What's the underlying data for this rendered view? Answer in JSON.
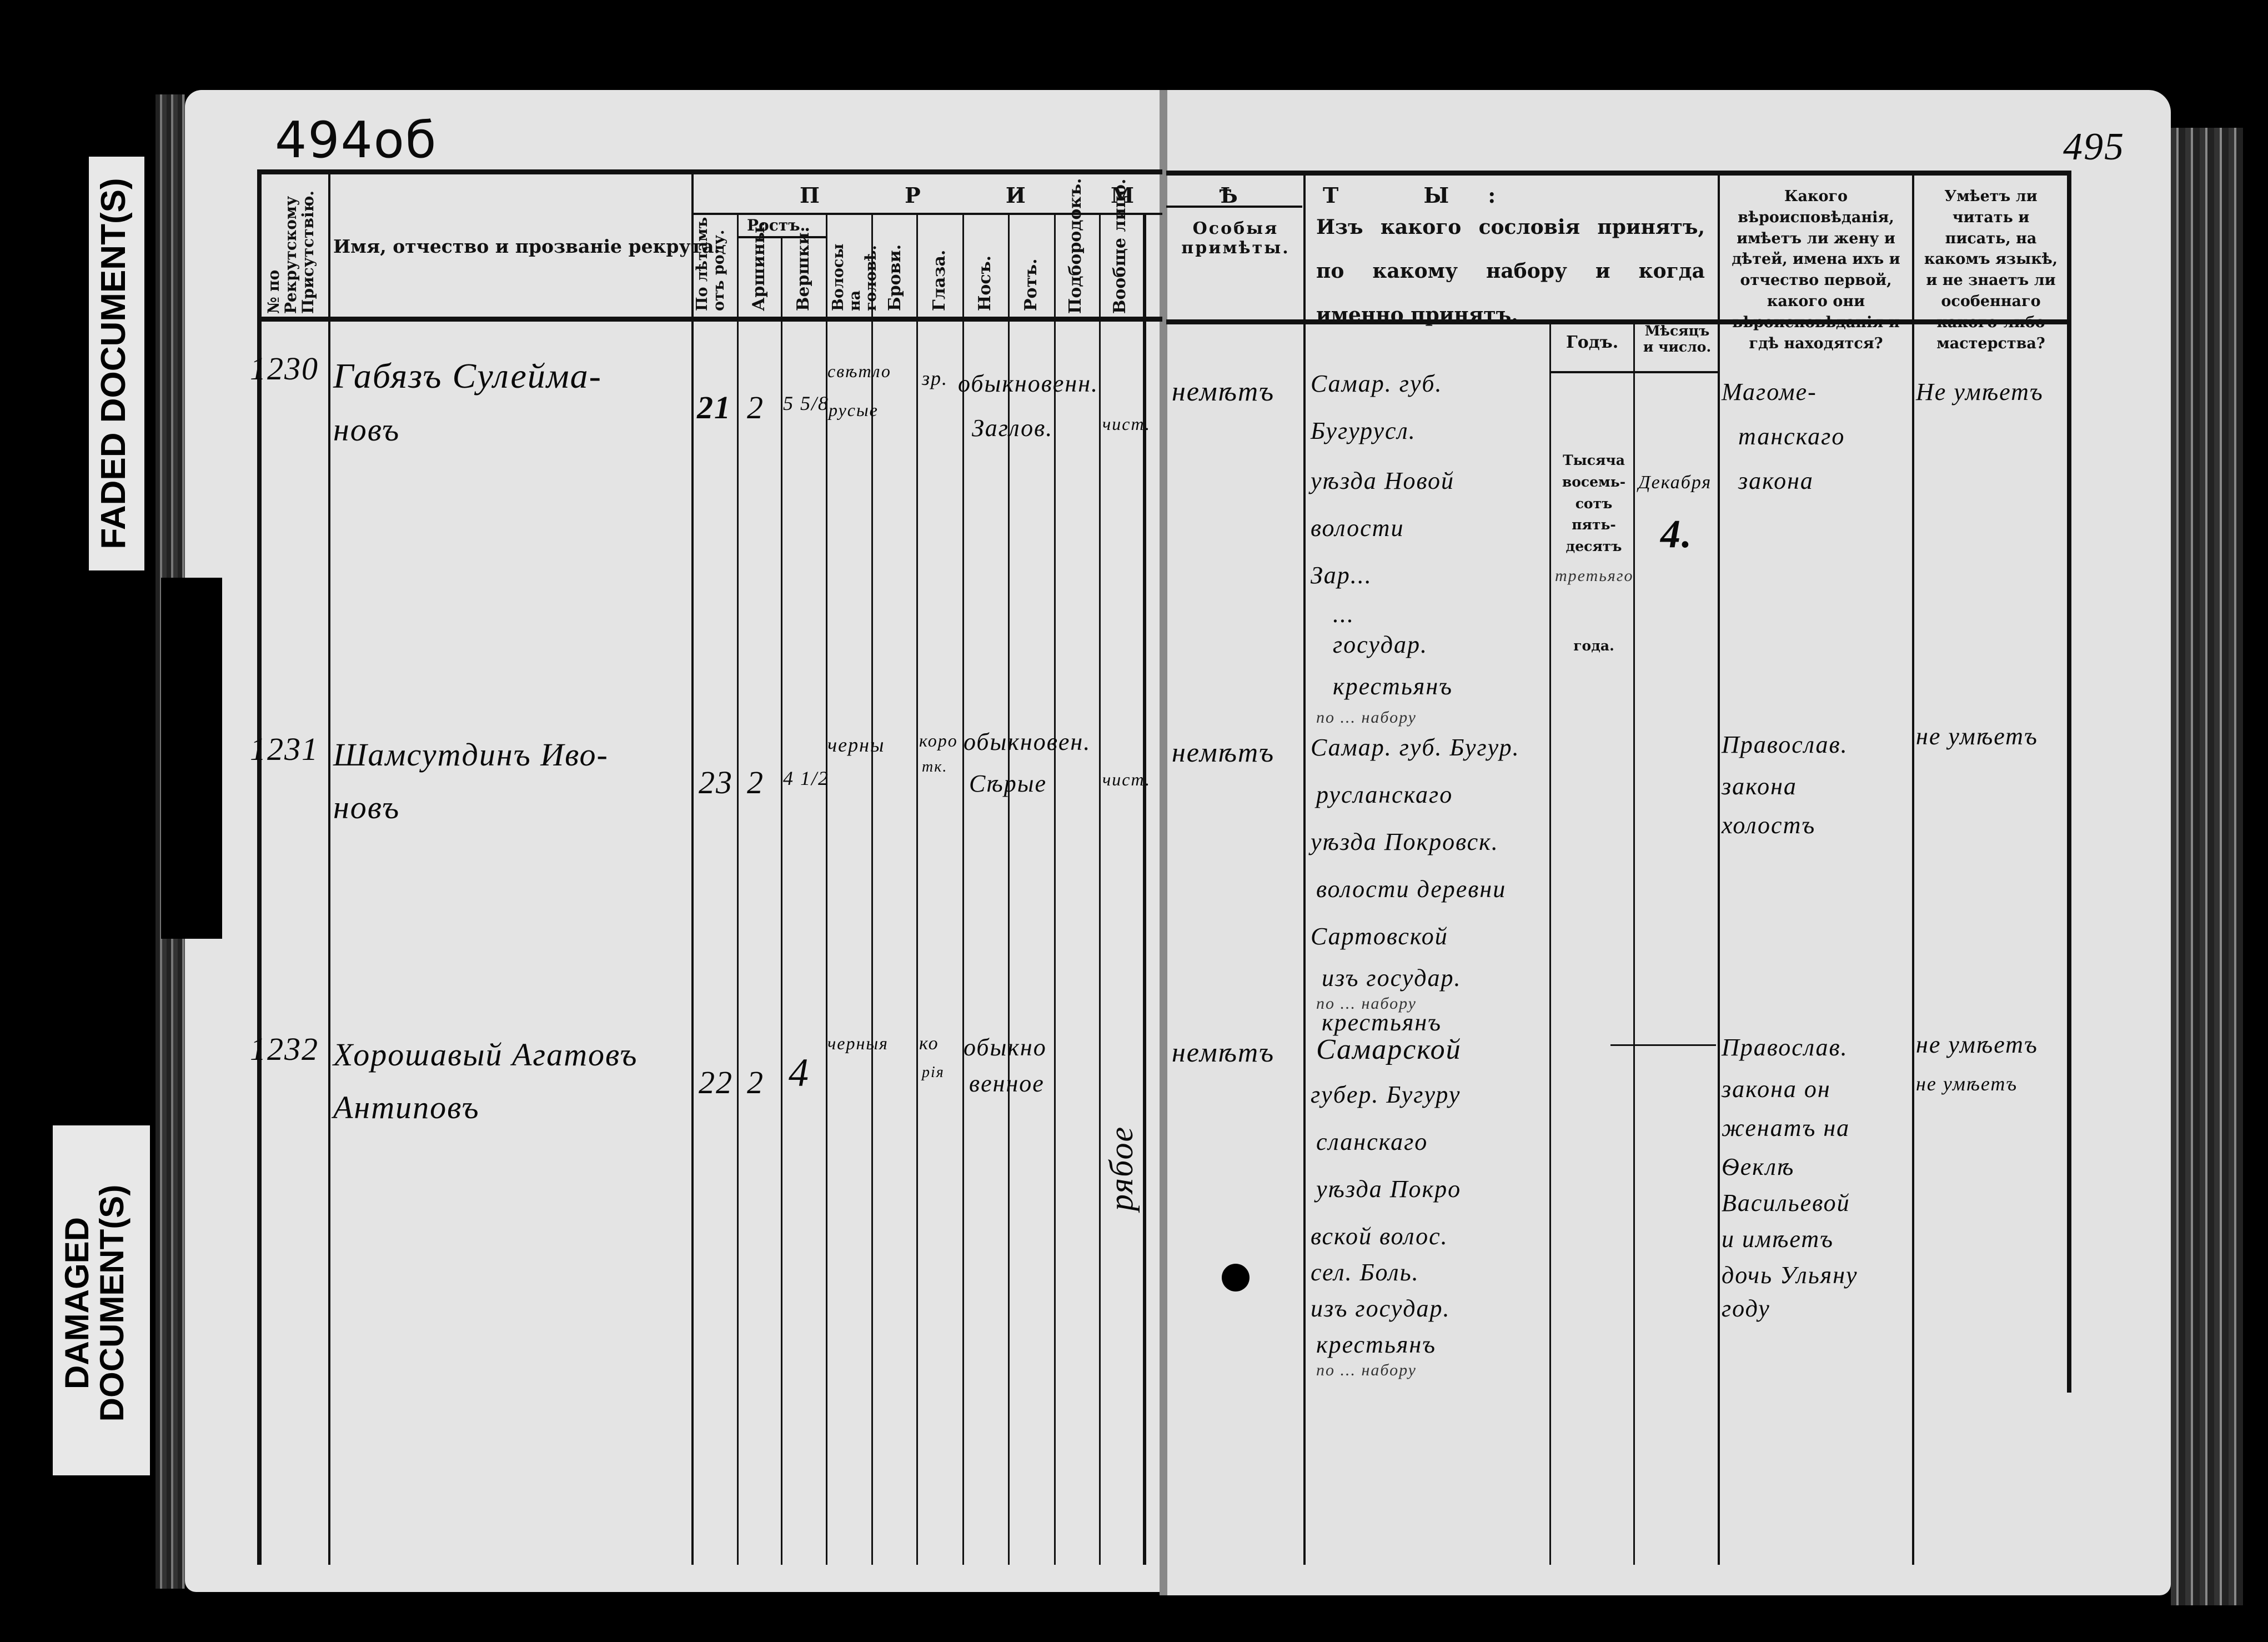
{
  "stamps": {
    "faded": "FADED DOCUMENT(S)",
    "damaged": "DAMAGED DOCUMENT(S)"
  },
  "folio": {
    "left": "494об",
    "right": "495"
  },
  "left_header": {
    "col_no": "№ по Рекрутскому Присутствію.",
    "col_name": "Имя, отчество и прозваніе рекрута.",
    "primety": "П Р И М Ѣ Т Ы:",
    "age": "По лѣтамъ отъ роду.",
    "rost": "Ростъ.",
    "arshiny": "Аршины.",
    "vershki": "Вершки.",
    "hair": "Волосы на головѣ.",
    "brows": "Брови.",
    "eyes": "Глаза.",
    "nose": "Носъ.",
    "mouth": "Ротъ.",
    "chin": "Подбородокъ.",
    "face": "Вообще лицо."
  },
  "right_header": {
    "special": "Особыя примѣты.",
    "estate": "Изъ какого сословія принятъ, по какому набору и когда именно принятъ.",
    "year": "Годъ.",
    "month": "Мѣсяцъ и число.",
    "religion": "Какого вѣроисповѣданія, имѣетъ ли жену и дѣтей, имена ихъ и отчество первой, какого они вѣроисповѣданія и гдѣ находятся?",
    "literacy": "Умѣетъ ли читать и писать, на какомъ языкѣ, и не знаетъ ли особеннаго какого-либо мастерства?",
    "year_printed_1": "Тысяча",
    "year_printed_2": "восемь-",
    "year_printed_3": "сотъ пять-",
    "year_printed_4": "десятъ",
    "year_printed_5": "года."
  },
  "rows": [
    {
      "no": "1230",
      "name_1": "Габязъ Сулейма-",
      "name_2": "новъ",
      "age": "21",
      "arshiny": "2",
      "vershki": "5 5/8",
      "hair_1": "свѣтло",
      "hair_2": "русые",
      "eyes": "зр.",
      "nose_mouth_1": "обыкновенн.",
      "nose_mouth_2": "Заглов.",
      "face": "чист.",
      "special": "немѣтъ",
      "estate": [
        "Самар. губ.",
        "Бугурусл.",
        "уѣзда Новой",
        "волости",
        "Зар...",
        "...",
        "государ.",
        "крестьянъ"
      ],
      "year_hw": "третьяго",
      "month": "Декабря",
      "day": "4.",
      "religion": [
        "Магоме-",
        "танскаго",
        "закона"
      ],
      "literacy": [
        "Не умѣетъ"
      ]
    },
    {
      "no": "1231",
      "name_1": "Шамсутдинъ Иво-",
      "name_2": "новъ",
      "age": "23",
      "arshiny": "2",
      "vershki": "4 1/2",
      "hair_1": "черны",
      "brows_1": "коро",
      "brows_2": "тк.",
      "nose_mouth_1": "обыкновен.",
      "nose_mouth_2": "Сѣрые",
      "face": "чист.",
      "special": "немѣтъ",
      "estate_note": "по ... набору",
      "estate": [
        "Самар. губ. Бугур.",
        "русланскаго",
        "уѣзда Покровск.",
        "волости деревни",
        "Сартовской",
        "изъ государ.",
        "крестьянъ"
      ],
      "religion": [
        "Православ.",
        "закона",
        "холостъ"
      ],
      "literacy": [
        "не умѣетъ"
      ]
    },
    {
      "no": "1232",
      "name_1": "Хорошавый Агатовъ",
      "name_2": "Антиповъ",
      "age": "22",
      "arshiny": "2",
      "vershki": "4",
      "hair_1": "черныя",
      "brows_1": "ко",
      "brows_2": "рія",
      "nose_mouth_1": "обыкно",
      "nose_mouth_2": "венное",
      "face_vertical": "рябое",
      "special": "немѣтъ",
      "estate_note": "по ... набору",
      "estate": [
        "Самарской",
        "губер. Бугуру",
        "сланскаго",
        "уѣзда Покро",
        "вской волос.",
        "сел. Боль.",
        "изъ государ.",
        "крестьянъ"
      ],
      "estate_note_2": "по ... набору",
      "religion": [
        "Православ.",
        "закона он",
        "женатъ на",
        "Ѳеклѣ",
        "Васильевой",
        "и имѣетъ",
        "дочь Ульяну",
        "году"
      ],
      "literacy": [
        "не умѣетъ",
        "не умѣетъ"
      ]
    }
  ],
  "colors": {
    "paper": "#e4e4e4",
    "ink": "#111111",
    "background": "#000000"
  }
}
